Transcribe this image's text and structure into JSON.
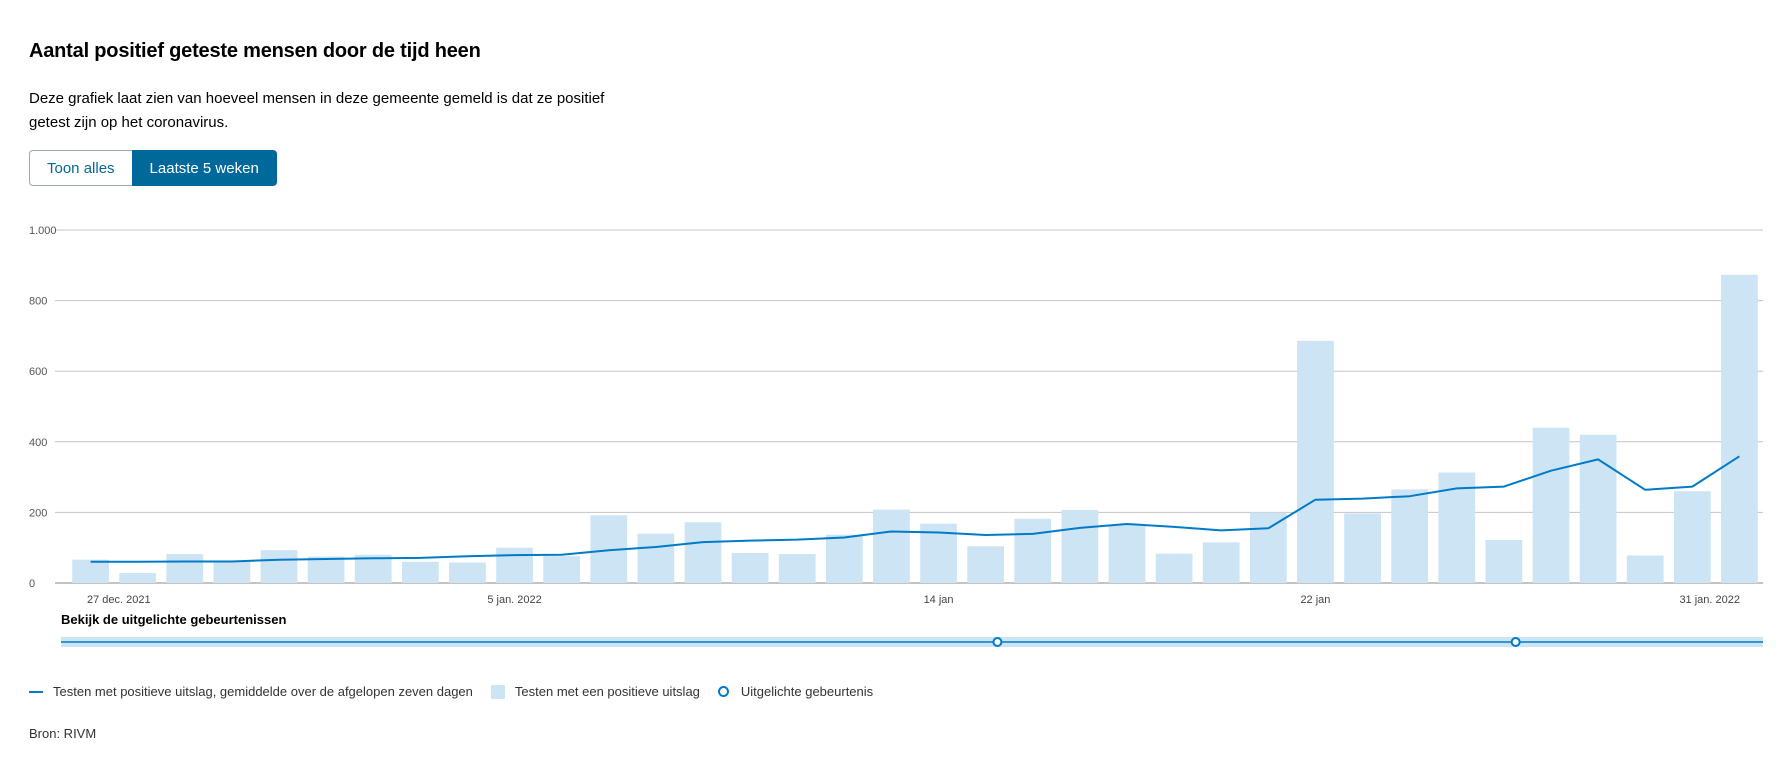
{
  "header": {
    "title": "Aantal positief geteste mensen door de tijd heen",
    "description": "Deze grafiek laat zien van hoeveel mensen in deze gemeente gemeld is dat ze positief getest zijn op het coronavirus."
  },
  "toggle": {
    "options": [
      "Toon alles",
      "Laatste 5 weken"
    ],
    "selected": "Laatste 5 weken"
  },
  "timeline": {
    "label": "Bekijk de uitgelichte gebeurtenissen"
  },
  "legend": {
    "line": "Testen met positieve uitslag, gemiddelde over de afgelopen zeven dagen",
    "bar": "Testen met een positieve uitslag",
    "event": "Uitgelichte gebeurtenis"
  },
  "source": "Bron: RIVM",
  "colors": {
    "bar": "#cde4f4",
    "line": "#007bc7",
    "button_active": "#01689b",
    "grid": "#c4c4c4",
    "timeline_band": "#cde4f4"
  },
  "chart_data": {
    "type": "bar",
    "ylim": [
      0,
      1000
    ],
    "y_ticks": [
      0,
      200,
      400,
      600,
      800,
      1000
    ],
    "y_tick_labels": [
      "0",
      "200",
      "400",
      "600",
      "800",
      "1.000"
    ],
    "x_tick_labels": [
      {
        "index": 0,
        "label": "27 dec. 2021"
      },
      {
        "index": 9,
        "label": "5 jan. 2022"
      },
      {
        "index": 18,
        "label": "14 jan"
      },
      {
        "index": 26,
        "label": "22 jan"
      },
      {
        "index": 35,
        "label": "31 jan. 2022"
      }
    ],
    "categories": [
      "2021-12-27",
      "2021-12-28",
      "2021-12-29",
      "2021-12-30",
      "2021-12-31",
      "2022-01-01",
      "2022-01-02",
      "2022-01-03",
      "2022-01-04",
      "2022-01-05",
      "2022-01-06",
      "2022-01-07",
      "2022-01-08",
      "2022-01-09",
      "2022-01-10",
      "2022-01-11",
      "2022-01-12",
      "2022-01-13",
      "2022-01-14",
      "2022-01-15",
      "2022-01-16",
      "2022-01-17",
      "2022-01-18",
      "2022-01-19",
      "2022-01-20",
      "2022-01-21",
      "2022-01-22",
      "2022-01-23",
      "2022-01-24",
      "2022-01-25",
      "2022-01-26",
      "2022-01-27",
      "2022-01-28",
      "2022-01-29",
      "2022-01-30",
      "2022-01-31"
    ],
    "series": [
      {
        "name": "Testen met een positieve uitslag",
        "type": "bar",
        "values": [
          66,
          28,
          82,
          64,
          93,
          75,
          80,
          60,
          58,
          100,
          76,
          192,
          140,
          172,
          85,
          82,
          137,
          208,
          168,
          104,
          182,
          207,
          165,
          83,
          115,
          200,
          686,
          197,
          265,
          313,
          122,
          440,
          420,
          78,
          260,
          873
        ]
      },
      {
        "name": "Testen met positieve uitslag, gemiddelde over de afgelopen zeven dagen",
        "type": "line",
        "values": [
          60,
          60,
          61,
          61,
          66,
          68,
          70,
          71,
          76,
          79,
          80,
          93,
          102,
          116,
          120,
          123,
          129,
          146,
          143,
          136,
          139,
          156,
          167,
          159,
          149,
          155,
          236,
          239,
          246,
          268,
          273,
          318,
          350,
          264,
          273,
          359
        ]
      }
    ],
    "highlighted_events": [
      {
        "date": "2022-01-15"
      },
      {
        "date": "2022-01-26"
      }
    ],
    "grid": true
  }
}
